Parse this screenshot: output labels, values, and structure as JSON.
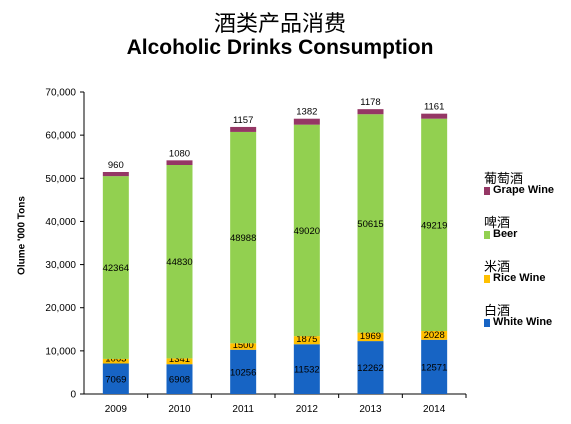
{
  "chart_data": {
    "type": "bar",
    "stacked": true,
    "title": "酒类产品消费",
    "subtitle": "Alcoholic Drinks Consumption",
    "xlabel": "",
    "ylabel": "Olume '000 Tons",
    "categories": [
      "2009",
      "2010",
      "2011",
      "2012",
      "2013",
      "2014"
    ],
    "ylim": [
      0,
      70000
    ],
    "yticks": [
      "0",
      "10,000",
      "20,000",
      "30,000",
      "40,000",
      "50,000",
      "60,000",
      "70,000"
    ],
    "grid": false,
    "legend_position": "right",
    "series": [
      {
        "name": "White Wine",
        "name_cn": "白酒",
        "color": "#1764c4",
        "values": [
          7069,
          6908,
          10256,
          11532,
          12262,
          12571
        ]
      },
      {
        "name": "Rice Wine",
        "name_cn": "米酒",
        "color": "#ffc000",
        "values": [
          1063,
          1341,
          1500,
          1875,
          1969,
          2028
        ]
      },
      {
        "name": "Beer",
        "name_cn": "啤酒",
        "color": "#92d050",
        "values": [
          42364,
          44830,
          48988,
          49020,
          50615,
          49219
        ]
      },
      {
        "name": "Grape Wine",
        "name_cn": "葡萄酒",
        "color": "#953765",
        "values": [
          960,
          1080,
          1157,
          1382,
          1178,
          1161
        ]
      }
    ]
  }
}
